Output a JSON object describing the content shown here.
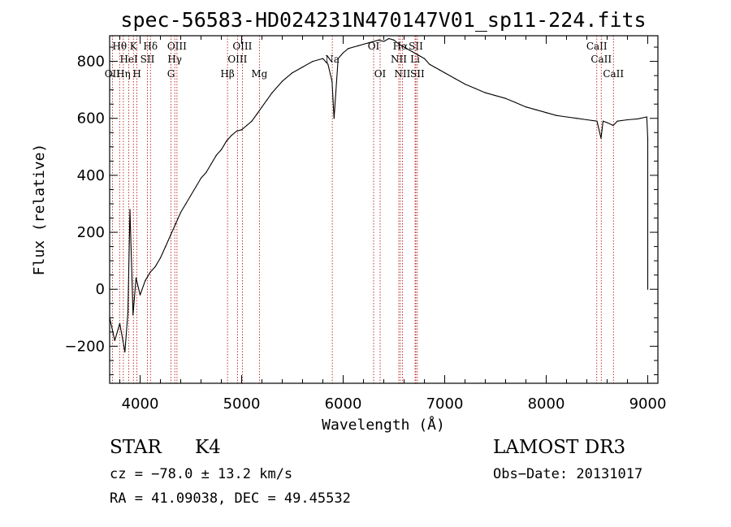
{
  "chart_data": {
    "type": "line",
    "title": "spec-56583-HD024231N470147V01_sp11-224.fits",
    "xlabel": "Wavelength (Å)",
    "ylabel": "Flux (relative)",
    "xlim": [
      3700,
      9100
    ],
    "ylim": [
      -330,
      890
    ],
    "xticks": [
      4000,
      5000,
      6000,
      7000,
      8000,
      9000
    ],
    "yticks": [
      -200,
      0,
      200,
      400,
      600,
      800
    ],
    "series": [
      {
        "name": "spectrum",
        "x": [
          3700,
          3750,
          3800,
          3850,
          3880,
          3900,
          3930,
          3960,
          4000,
          4050,
          4100,
          4150,
          4200,
          4250,
          4300,
          4350,
          4400,
          4450,
          4500,
          4550,
          4600,
          4650,
          4700,
          4750,
          4800,
          4850,
          4900,
          4950,
          5000,
          5050,
          5100,
          5150,
          5200,
          5250,
          5300,
          5400,
          5500,
          5600,
          5700,
          5800,
          5850,
          5890,
          5910,
          5950,
          6000,
          6050,
          6100,
          6150,
          6200,
          6250,
          6300,
          6350,
          6400,
          6450,
          6500,
          6550,
          6600,
          6650,
          6700,
          6750,
          6800,
          6850,
          6900,
          6950,
          7000,
          7100,
          7200,
          7300,
          7400,
          7500,
          7600,
          7700,
          7800,
          7900,
          8000,
          8100,
          8200,
          8300,
          8400,
          8500,
          8540,
          8560,
          8600,
          8660,
          8700,
          8800,
          8900,
          8990,
          9000,
          9000
        ],
        "y": [
          -100,
          -180,
          -120,
          -220,
          -80,
          280,
          -90,
          40,
          -20,
          30,
          60,
          80,
          110,
          150,
          190,
          230,
          270,
          300,
          330,
          360,
          390,
          410,
          440,
          470,
          490,
          520,
          540,
          555,
          560,
          575,
          590,
          615,
          640,
          665,
          690,
          730,
          760,
          780,
          800,
          810,
          790,
          730,
          600,
          810,
          830,
          845,
          850,
          855,
          860,
          865,
          870,
          875,
          870,
          880,
          875,
          860,
          850,
          840,
          830,
          820,
          810,
          790,
          780,
          770,
          760,
          740,
          720,
          705,
          690,
          680,
          670,
          655,
          640,
          630,
          620,
          610,
          605,
          600,
          595,
          590,
          530,
          590,
          585,
          575,
          590,
          595,
          598,
          605,
          530,
          0
        ]
      }
    ],
    "lines": [
      {
        "name": "Hθ",
        "wl": 3798,
        "row": 1
      },
      {
        "name": "OII",
        "wl": 3727,
        "row": 3
      },
      {
        "name": "HeI",
        "wl": 3889,
        "row": 2
      },
      {
        "name": "Hη",
        "wl": 3835,
        "row": 3
      },
      {
        "name": "K",
        "wl": 3934,
        "row": 1
      },
      {
        "name": "H",
        "wl": 3969,
        "row": 3
      },
      {
        "name": "Hδ",
        "wl": 4102,
        "row": 1
      },
      {
        "name": "SII",
        "wl": 4072,
        "row": 2
      },
      {
        "name": "OIII",
        "wl": 4363,
        "row": 1
      },
      {
        "name": "Hγ",
        "wl": 4341,
        "row": 2
      },
      {
        "name": "G",
        "wl": 4304,
        "row": 3
      },
      {
        "name": "Hβ",
        "wl": 4861,
        "row": 3
      },
      {
        "name": "OIII",
        "wl": 4959,
        "row": 2
      },
      {
        "name": "OIII",
        "wl": 5007,
        "row": 1
      },
      {
        "name": "Mg",
        "wl": 5175,
        "row": 3
      },
      {
        "name": "Na",
        "wl": 5893,
        "row": 2
      },
      {
        "name": "OI",
        "wl": 6300,
        "row": 1
      },
      {
        "name": "OI",
        "wl": 6364,
        "row": 3
      },
      {
        "name": "NII",
        "wl": 6548,
        "row": 2
      },
      {
        "name": "Hα",
        "wl": 6563,
        "row": 1
      },
      {
        "name": "NII",
        "wl": 6583,
        "row": 3
      },
      {
        "name": "SII",
        "wl": 6716,
        "row": 1
      },
      {
        "name": "Li",
        "wl": 6708,
        "row": 2
      },
      {
        "name": "SII",
        "wl": 6731,
        "row": 3
      },
      {
        "name": "CaII",
        "wl": 8498,
        "row": 1
      },
      {
        "name": "CaII",
        "wl": 8542,
        "row": 2
      },
      {
        "name": "CaII",
        "wl": 8662,
        "row": 3
      }
    ]
  },
  "info": {
    "star_label": "STAR",
    "subclass": "K4",
    "survey": "LAMOST DR3",
    "cz": "cz = −78.0 ± 13.2 km/s",
    "obs_date": "Obs−Date: 20131017",
    "radec": "RA =  41.09038, DEC =  49.45532"
  },
  "colors": {
    "spectrum": "#000000",
    "lines": "#b00000",
    "axes": "#000000"
  }
}
